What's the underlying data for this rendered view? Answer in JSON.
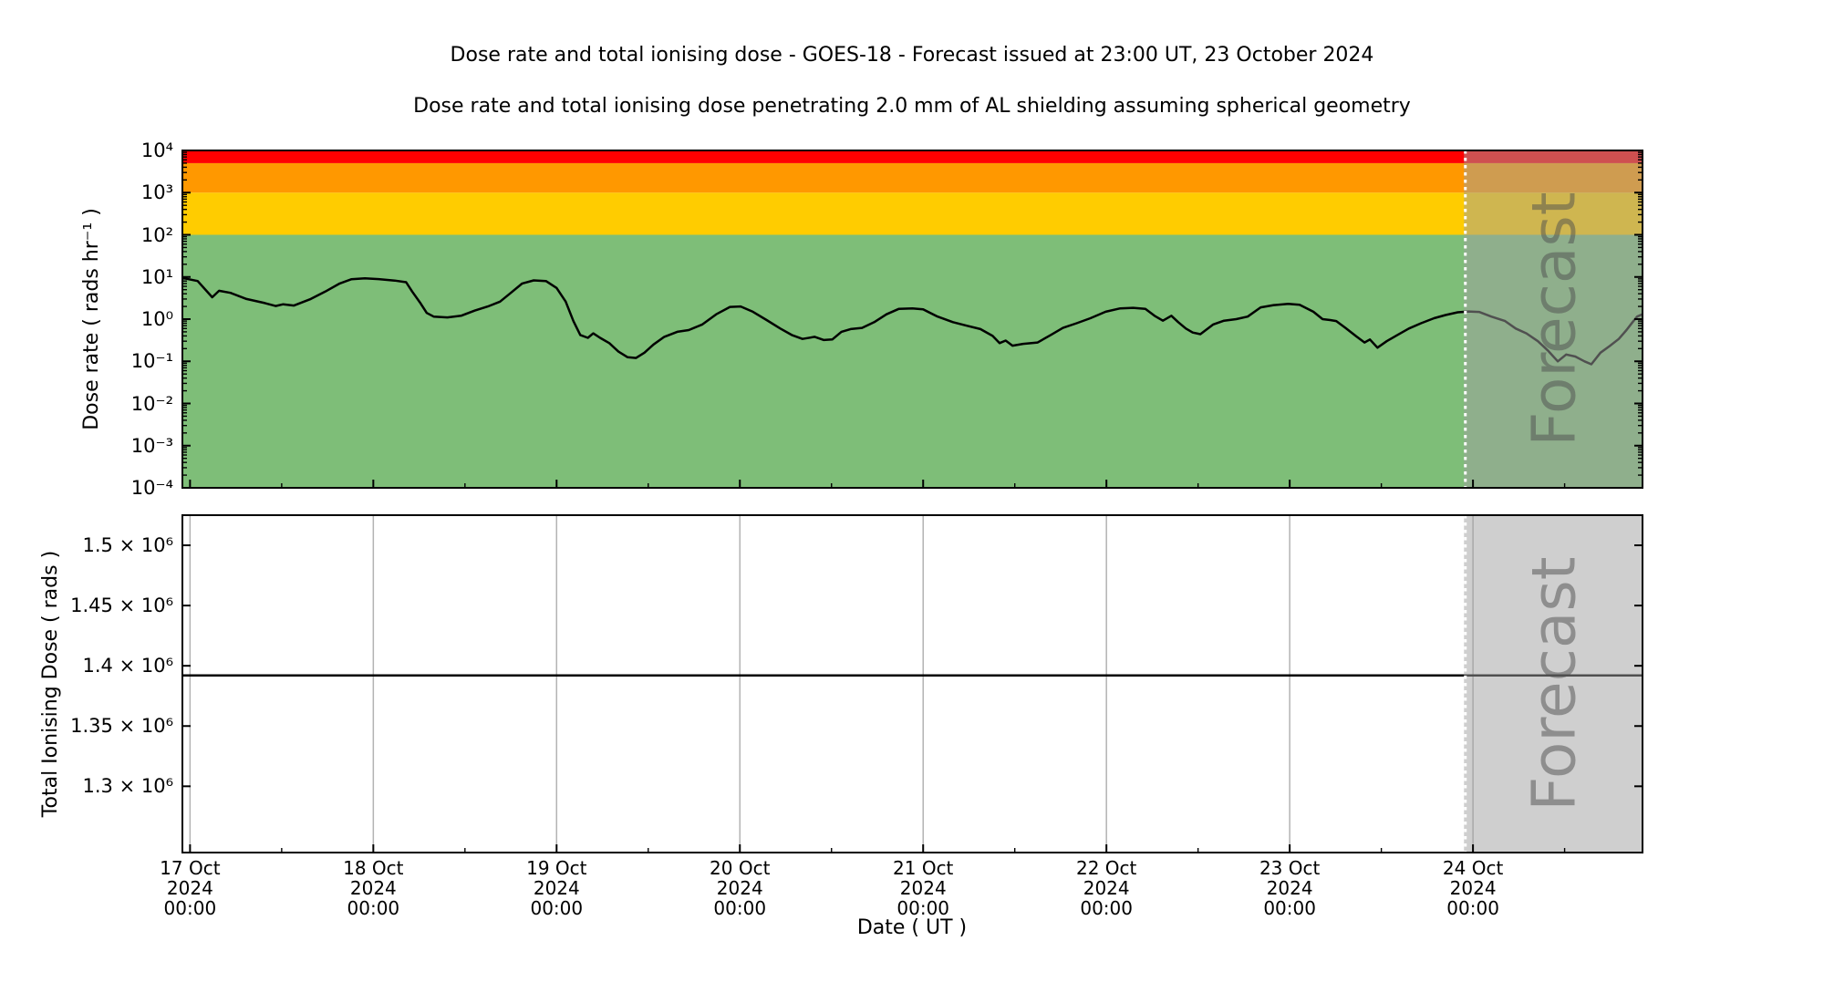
{
  "header": {
    "title": "Dose rate and total ionising dose - GOES-18 - Forecast issued at 23:00 UT, 23 October 2024",
    "subtitle": "Dose rate and total ionising dose penetrating 2.0 mm of AL shielding assuming spherical geometry"
  },
  "axes": {
    "xlabel": "Date ( UT )",
    "xlim_hours": [
      -1.0,
      190.2
    ],
    "major_tick_step_hours": 24,
    "minor_tick_step_hours": 12,
    "xticks": [
      {
        "hours": 0,
        "day": "17 Oct",
        "year": "2024",
        "time": "00:00"
      },
      {
        "hours": 24,
        "day": "18 Oct",
        "year": "2024",
        "time": "00:00"
      },
      {
        "hours": 48,
        "day": "19 Oct",
        "year": "2024",
        "time": "00:00"
      },
      {
        "hours": 72,
        "day": "20 Oct",
        "year": "2024",
        "time": "00:00"
      },
      {
        "hours": 96,
        "day": "21 Oct",
        "year": "2024",
        "time": "00:00"
      },
      {
        "hours": 120,
        "day": "22 Oct",
        "year": "2024",
        "time": "00:00"
      },
      {
        "hours": 144,
        "day": "23 Oct",
        "year": "2024",
        "time": "00:00"
      },
      {
        "hours": 168,
        "day": "24 Oct",
        "year": "2024",
        "time": "00:00"
      }
    ]
  },
  "forecast": {
    "label": "Forecast",
    "start_hours": 167,
    "overlay_color": "#a0a0a0",
    "overlay_opacity": 0.5,
    "boundary_line_color": "#ffffff",
    "text_color": "#4d4d4d",
    "text_opacity": 0.5
  },
  "chart_data": [
    {
      "type": "line",
      "name": "dose-rate",
      "ylabel": "Dose rate ( rads hr⁻¹ )",
      "yscale": "log",
      "ylim": [
        0.0001,
        10000
      ],
      "yticks": [
        {
          "label": "10⁴",
          "value": 10000
        },
        {
          "label": "10³",
          "value": 1000
        },
        {
          "label": "10²",
          "value": 100
        },
        {
          "label": "10¹",
          "value": 10
        },
        {
          "label": "10⁰",
          "value": 1
        },
        {
          "label": "10⁻¹",
          "value": 0.1
        },
        {
          "label": "10⁻²",
          "value": 0.01
        },
        {
          "label": "10⁻³",
          "value": 0.001
        },
        {
          "label": "10⁻⁴",
          "value": 0.0001
        }
      ],
      "bands": [
        {
          "name": "green-band",
          "from": 0.0001,
          "to": 100,
          "color": "#7ebe78"
        },
        {
          "name": "yellow-band",
          "from": 100,
          "to": 1000,
          "color": "#ffcc00"
        },
        {
          "name": "orange-band",
          "from": 1000,
          "to": 5000,
          "color": "#ff9800"
        },
        {
          "name": "red-band",
          "from": 5000,
          "to": 10000,
          "color": "#ff0000"
        }
      ],
      "series": [
        {
          "name": "dose_rate_rads_per_hr",
          "color": "#000000",
          "points": [
            [
              -1.0,
              9.5
            ],
            [
              1.0,
              8.0
            ],
            [
              2.9,
              3.3
            ],
            [
              3.8,
              4.7
            ],
            [
              5.3,
              4.2
            ],
            [
              7.4,
              3.0
            ],
            [
              9.8,
              2.4
            ],
            [
              11.2,
              2.05
            ],
            [
              12.2,
              2.25
            ],
            [
              13.6,
              2.1
            ],
            [
              15.8,
              3.0
            ],
            [
              17.7,
              4.5
            ],
            [
              19.6,
              7.0
            ],
            [
              21.1,
              8.8
            ],
            [
              22.9,
              9.3
            ],
            [
              24.7,
              8.9
            ],
            [
              26.8,
              8.2
            ],
            [
              28.3,
              7.5
            ],
            [
              29.1,
              4.5
            ],
            [
              30.1,
              2.5
            ],
            [
              31.0,
              1.4
            ],
            [
              31.9,
              1.15
            ],
            [
              33.7,
              1.1
            ],
            [
              35.5,
              1.2
            ],
            [
              37.3,
              1.6
            ],
            [
              39.0,
              2.0
            ],
            [
              40.6,
              2.6
            ],
            [
              42.0,
              4.2
            ],
            [
              43.5,
              7.0
            ],
            [
              45.0,
              8.3
            ],
            [
              46.6,
              8.0
            ],
            [
              48.0,
              5.5
            ],
            [
              49.2,
              2.6
            ],
            [
              50.2,
              0.9
            ],
            [
              51.1,
              0.42
            ],
            [
              52.1,
              0.36
            ],
            [
              52.8,
              0.46
            ],
            [
              53.7,
              0.36
            ],
            [
              54.9,
              0.27
            ],
            [
              56.1,
              0.17
            ],
            [
              57.3,
              0.125
            ],
            [
              58.4,
              0.12
            ],
            [
              59.5,
              0.16
            ],
            [
              60.7,
              0.25
            ],
            [
              62.1,
              0.38
            ],
            [
              63.8,
              0.5
            ],
            [
              65.3,
              0.55
            ],
            [
              67.1,
              0.75
            ],
            [
              68.9,
              1.3
            ],
            [
              70.7,
              1.95
            ],
            [
              72.1,
              2.0
            ],
            [
              73.7,
              1.5
            ],
            [
              75.5,
              0.95
            ],
            [
              77.3,
              0.6
            ],
            [
              78.8,
              0.42
            ],
            [
              80.2,
              0.34
            ],
            [
              81.8,
              0.38
            ],
            [
              83.0,
              0.32
            ],
            [
              84.1,
              0.33
            ],
            [
              85.3,
              0.5
            ],
            [
              86.5,
              0.58
            ],
            [
              88.0,
              0.62
            ],
            [
              89.6,
              0.85
            ],
            [
              91.2,
              1.3
            ],
            [
              92.8,
              1.75
            ],
            [
              94.6,
              1.8
            ],
            [
              96.0,
              1.7
            ],
            [
              97.9,
              1.15
            ],
            [
              99.9,
              0.85
            ],
            [
              101.7,
              0.7
            ],
            [
              103.5,
              0.58
            ],
            [
              105.1,
              0.4
            ],
            [
              106.0,
              0.27
            ],
            [
              106.8,
              0.31
            ],
            [
              107.7,
              0.235
            ],
            [
              109.1,
              0.26
            ],
            [
              111.0,
              0.28
            ],
            [
              112.7,
              0.42
            ],
            [
              114.3,
              0.62
            ],
            [
              116.1,
              0.8
            ],
            [
              117.9,
              1.05
            ],
            [
              119.9,
              1.5
            ],
            [
              121.8,
              1.8
            ],
            [
              123.5,
              1.85
            ],
            [
              125.1,
              1.75
            ],
            [
              126.3,
              1.2
            ],
            [
              127.4,
              0.92
            ],
            [
              128.5,
              1.2
            ],
            [
              129.4,
              0.85
            ],
            [
              130.4,
              0.6
            ],
            [
              131.3,
              0.48
            ],
            [
              132.3,
              0.44
            ],
            [
              134.0,
              0.75
            ],
            [
              135.4,
              0.92
            ],
            [
              137.0,
              1.0
            ],
            [
              138.5,
              1.15
            ],
            [
              140.2,
              1.9
            ],
            [
              141.9,
              2.15
            ],
            [
              143.8,
              2.3
            ],
            [
              145.3,
              2.2
            ],
            [
              147.1,
              1.5
            ],
            [
              148.3,
              1.0
            ],
            [
              149.3,
              0.95
            ],
            [
              150.1,
              0.9
            ],
            [
              151.3,
              0.62
            ],
            [
              152.8,
              0.38
            ],
            [
              153.8,
              0.28
            ],
            [
              154.5,
              0.33
            ],
            [
              155.5,
              0.21
            ],
            [
              156.7,
              0.3
            ],
            [
              158.1,
              0.42
            ],
            [
              159.6,
              0.6
            ],
            [
              161.2,
              0.8
            ],
            [
              162.9,
              1.05
            ],
            [
              164.4,
              1.25
            ],
            [
              166.0,
              1.45
            ],
            [
              167.4,
              1.52
            ],
            [
              168.8,
              1.48
            ],
            [
              170.4,
              1.15
            ],
            [
              172.2,
              0.9
            ],
            [
              173.6,
              0.6
            ],
            [
              175.0,
              0.46
            ],
            [
              176.5,
              0.3
            ],
            [
              177.8,
              0.18
            ],
            [
              179.1,
              0.1
            ],
            [
              180.2,
              0.145
            ],
            [
              181.4,
              0.13
            ],
            [
              182.6,
              0.1
            ],
            [
              183.5,
              0.085
            ],
            [
              184.7,
              0.16
            ],
            [
              185.9,
              0.23
            ],
            [
              187.1,
              0.34
            ],
            [
              188.1,
              0.55
            ],
            [
              188.9,
              0.85
            ],
            [
              189.5,
              1.15
            ],
            [
              190.2,
              1.3
            ]
          ]
        }
      ]
    },
    {
      "type": "line",
      "name": "total-ionising-dose",
      "ylabel": "Total Ionising Dose ( rads )",
      "yscale": "linear",
      "ylim": [
        1245000,
        1525000
      ],
      "yticks": [
        {
          "label": "1.5 × 10⁶",
          "value": 1500000
        },
        {
          "label": "1.45 × 10⁶",
          "value": 1450000
        },
        {
          "label": "1.4 × 10⁶",
          "value": 1400000
        },
        {
          "label": "1.35 × 10⁶",
          "value": 1350000
        },
        {
          "label": "1.3 × 10⁶",
          "value": 1300000
        }
      ],
      "grid": {
        "vertical_on_major_ticks": true,
        "color": "#b3b3b3"
      },
      "series": [
        {
          "name": "total_ionising_dose_rads",
          "color": "#000000",
          "points": [
            [
              -1.0,
              1392000
            ],
            [
              190.2,
              1392000
            ]
          ]
        }
      ]
    }
  ]
}
